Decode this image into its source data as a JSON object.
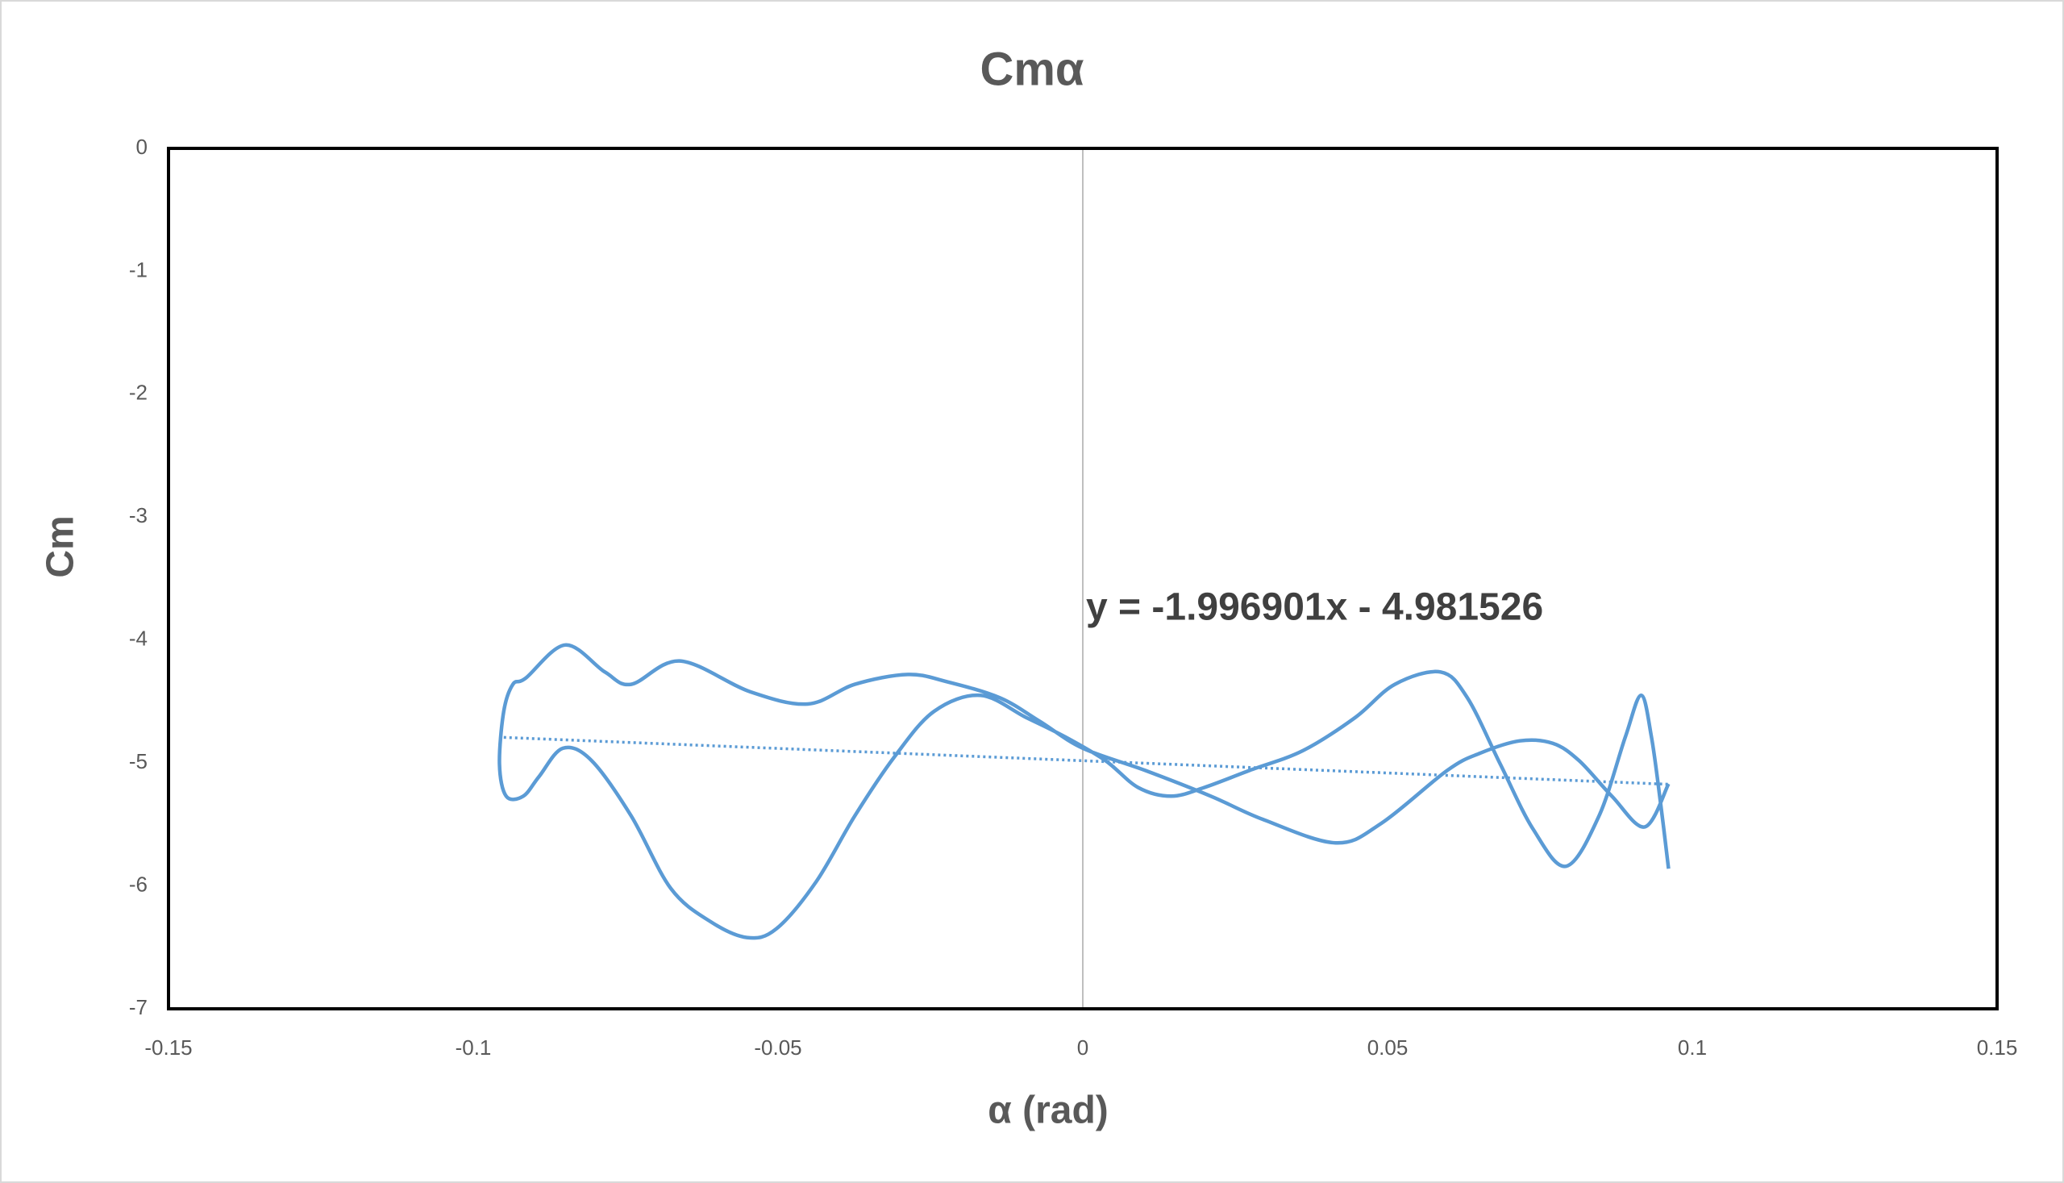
{
  "chart_data": {
    "type": "line",
    "title": "Cmα",
    "xlabel": "α (rad)",
    "ylabel": "Cm",
    "annotation": "y = -1.996901x - 4.981526",
    "color": "#5b9bd5",
    "grid": false,
    "xlim": [
      -0.15,
      0.15
    ],
    "xticks": [
      -0.15,
      -0.1,
      -0.05,
      0,
      0.05,
      0.1,
      0.15
    ],
    "ylim": [
      -7,
      0
    ],
    "yticks": [
      0,
      -1,
      -2,
      -3,
      -4,
      -5,
      -6,
      -7
    ],
    "x": [
      0.0961,
      0.0922,
      0.0868,
      0.0814,
      0.0771,
      0.0717,
      0.0652,
      0.0598,
      0.049,
      0.0415,
      0.0296,
      0.021,
      0.0102,
      0,
      -0.0071,
      -0.0136,
      -0.0222,
      -0.0287,
      -0.0374,
      -0.0451,
      -0.0546,
      -0.0661,
      -0.0741,
      -0.0784,
      -0.0849,
      -0.0914,
      -0.0935,
      -0.095,
      -0.0957,
      -0.0946,
      -0.0918,
      -0.0892,
      -0.0853,
      -0.0806,
      -0.0741,
      -0.0676,
      -0.0611,
      -0.0551,
      -0.0503,
      -0.0438,
      -0.0374,
      -0.0309,
      -0.0244,
      -0.0168,
      -0.0093,
      -0.0028,
      0.0037,
      0.0091,
      0.0145,
      0.0199,
      0.0274,
      0.0361,
      0.0447,
      0.0512,
      0.0587,
      0.0631,
      0.0685,
      0.0739,
      0.0793,
      0.0847,
      0.089,
      0.0916,
      0.0933,
      0.0948,
      0.0961
    ],
    "values": [
      -5.17,
      -5.52,
      -5.27,
      -4.98,
      -4.84,
      -4.82,
      -4.92,
      -5.06,
      -5.49,
      -5.65,
      -5.46,
      -5.27,
      -5.06,
      -4.88,
      -4.66,
      -4.47,
      -4.34,
      -4.28,
      -4.36,
      -4.52,
      -4.42,
      -4.17,
      -4.36,
      -4.26,
      -4.04,
      -4.31,
      -4.36,
      -4.58,
      -5.01,
      -5.27,
      -5.27,
      -5.11,
      -4.88,
      -4.98,
      -5.43,
      -6.02,
      -6.29,
      -6.42,
      -6.35,
      -5.97,
      -5.43,
      -4.95,
      -4.58,
      -4.45,
      -4.63,
      -4.79,
      -4.98,
      -5.2,
      -5.27,
      -5.2,
      -5.06,
      -4.9,
      -4.63,
      -4.36,
      -4.26,
      -4.47,
      -5.01,
      -5.54,
      -5.84,
      -5.43,
      -4.79,
      -4.45,
      -4.79,
      -5.33,
      -5.86
    ],
    "trendline": {
      "slope": -1.996901,
      "intercept": -4.981526,
      "x": [
        -0.095,
        0.096
      ]
    }
  }
}
